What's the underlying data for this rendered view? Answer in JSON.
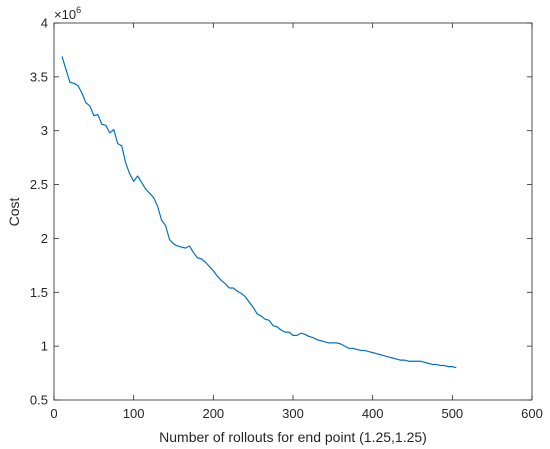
{
  "chart_data": {
    "type": "line",
    "title": "",
    "xlabel": "Number of rollouts for end point (1.25,1.25)",
    "ylabel": "Cost",
    "y_exponent_label": "×10",
    "y_exponent": "6",
    "xlim": [
      0,
      600
    ],
    "ylim": [
      0.5,
      4
    ],
    "x_ticks": [
      0,
      100,
      200,
      300,
      400,
      500,
      600
    ],
    "x_tick_labels": [
      "0",
      "100",
      "200",
      "300",
      "400",
      "500",
      "600"
    ],
    "y_ticks": [
      0.5,
      1,
      1.5,
      2,
      2.5,
      3,
      3.5,
      4
    ],
    "y_tick_labels": [
      "0.5",
      "1",
      "1.5",
      "2",
      "2.5",
      "3",
      "3.5",
      "4"
    ],
    "grid": false,
    "line_color": "#0072BD",
    "series": [
      {
        "x": [
          10,
          15,
          20,
          25,
          30,
          35,
          40,
          45,
          50,
          55,
          60,
          65,
          70,
          75,
          80,
          85,
          90,
          95,
          100,
          105,
          110,
          115,
          120,
          125,
          130,
          135,
          140,
          145,
          150,
          155,
          160,
          165,
          170,
          175,
          180,
          185,
          190,
          195,
          200,
          205,
          210,
          215,
          220,
          225,
          230,
          235,
          240,
          245,
          250,
          255,
          260,
          265,
          270,
          275,
          280,
          285,
          290,
          295,
          300,
          305,
          310,
          315,
          320,
          325,
          330,
          335,
          340,
          345,
          350,
          355,
          360,
          365,
          370,
          375,
          380,
          385,
          390,
          395,
          400,
          405,
          410,
          415,
          420,
          425,
          430,
          435,
          440,
          445,
          450,
          455,
          460,
          465,
          470,
          475,
          480,
          485,
          490,
          495,
          500,
          505
        ],
        "y": [
          3.69,
          3.57,
          3.45,
          3.44,
          3.42,
          3.35,
          3.26,
          3.23,
          3.14,
          3.15,
          3.06,
          3.05,
          2.98,
          3.01,
          2.88,
          2.86,
          2.7,
          2.6,
          2.53,
          2.58,
          2.52,
          2.46,
          2.42,
          2.38,
          2.3,
          2.17,
          2.12,
          1.99,
          1.95,
          1.93,
          1.92,
          1.91,
          1.93,
          1.87,
          1.82,
          1.81,
          1.78,
          1.74,
          1.7,
          1.65,
          1.61,
          1.58,
          1.54,
          1.54,
          1.51,
          1.49,
          1.46,
          1.41,
          1.36,
          1.3,
          1.28,
          1.25,
          1.24,
          1.19,
          1.18,
          1.15,
          1.13,
          1.13,
          1.1,
          1.1,
          1.12,
          1.11,
          1.09,
          1.08,
          1.06,
          1.05,
          1.04,
          1.03,
          1.03,
          1.03,
          1.02,
          1.0,
          0.98,
          0.98,
          0.97,
          0.96,
          0.96,
          0.95,
          0.94,
          0.93,
          0.92,
          0.91,
          0.9,
          0.89,
          0.88,
          0.87,
          0.87,
          0.86,
          0.86,
          0.86,
          0.86,
          0.85,
          0.84,
          0.83,
          0.83,
          0.82,
          0.82,
          0.81,
          0.81,
          0.8
        ]
      }
    ]
  }
}
